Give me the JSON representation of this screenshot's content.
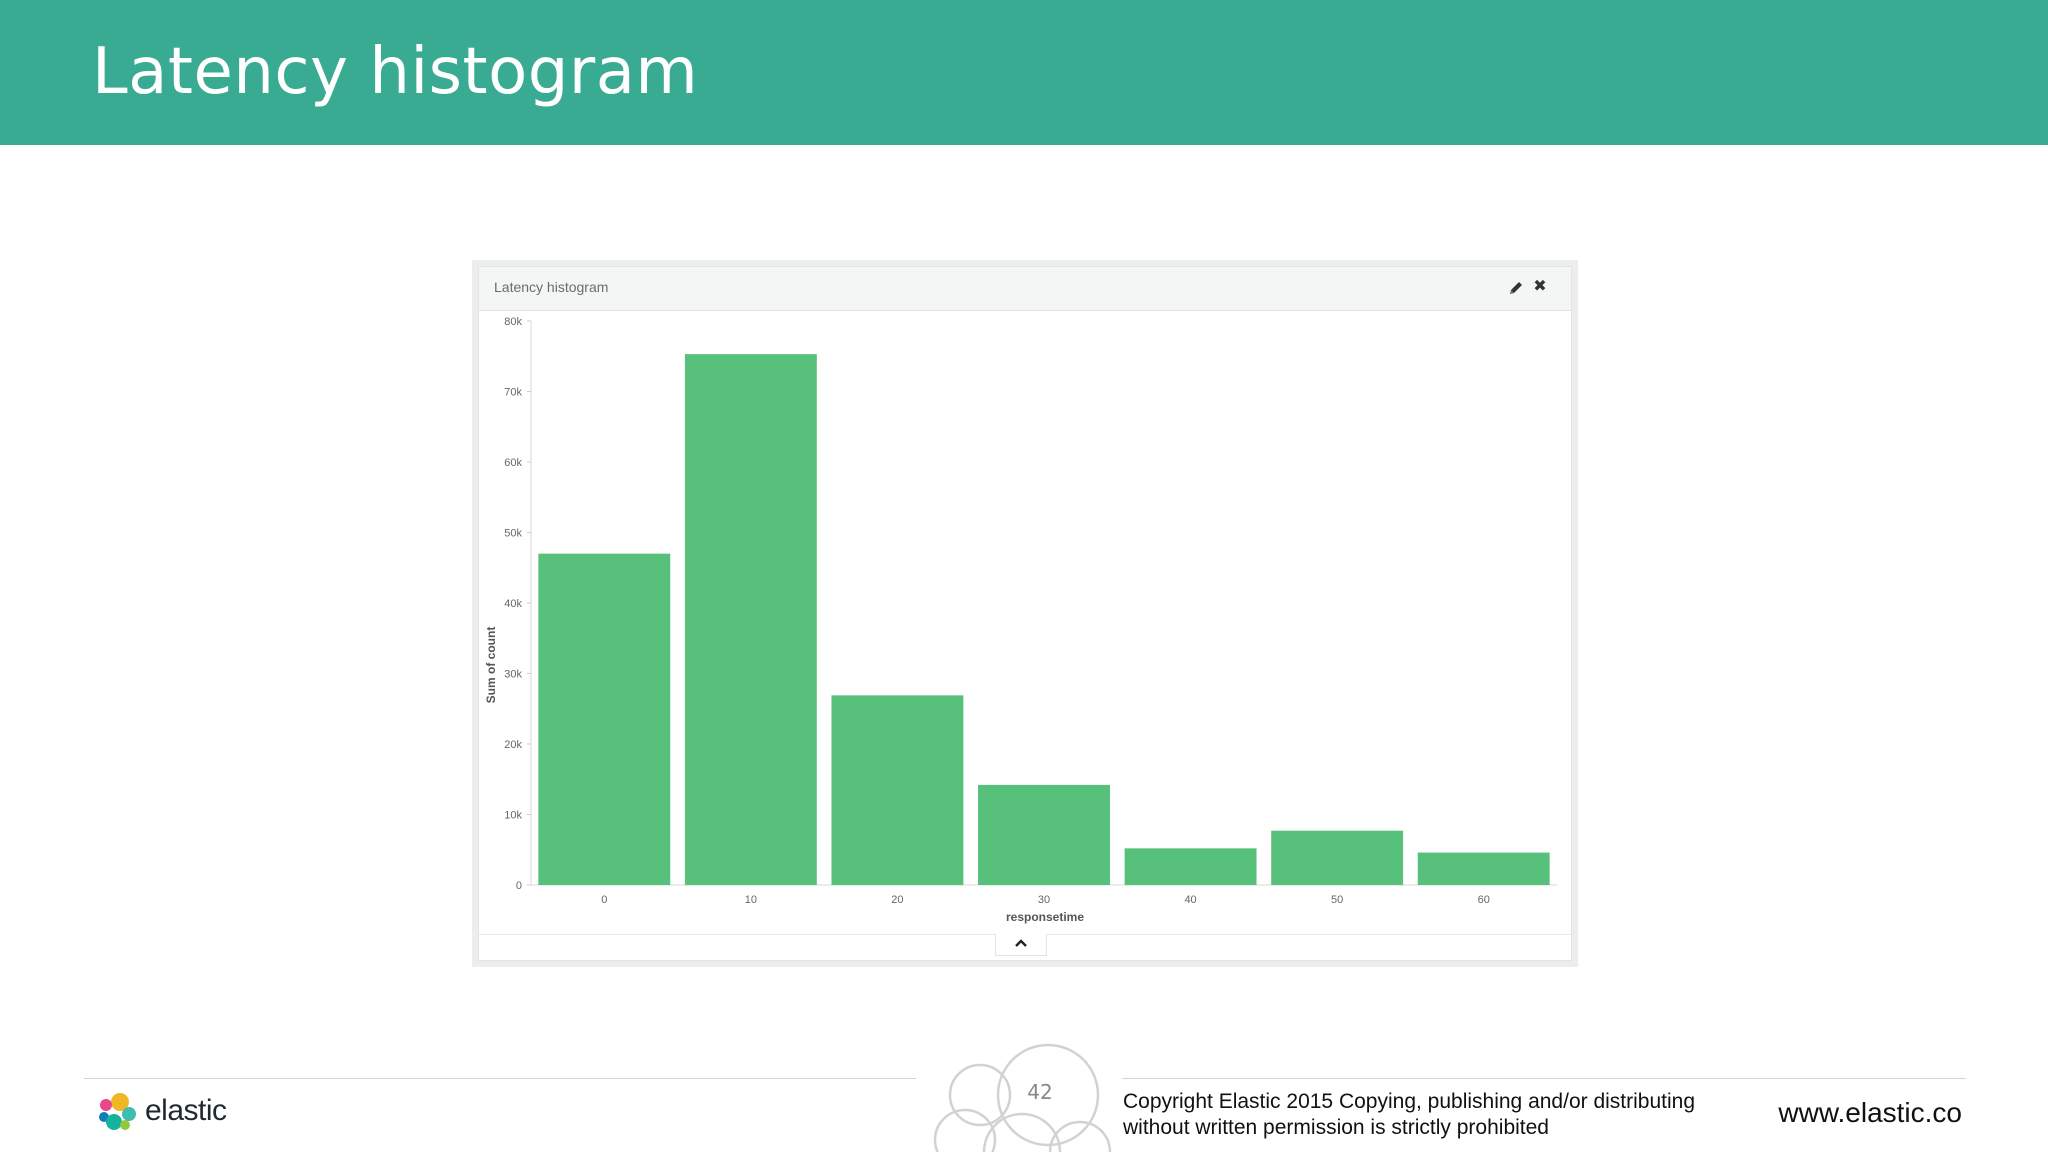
{
  "slide": {
    "title": "Latency histogram",
    "header_color": "#39ab92"
  },
  "panel": {
    "title": "Latency histogram",
    "edit_icon": "pencil-icon",
    "close_icon": "close-icon",
    "collapse_icon": "chevron-up-icon"
  },
  "chart_data": {
    "type": "bar",
    "title": "",
    "xlabel": "responsetime",
    "ylabel": "Sum of count",
    "categories": [
      "0",
      "10",
      "20",
      "30",
      "40",
      "50",
      "60"
    ],
    "values": [
      47000,
      75300,
      26900,
      14200,
      5200,
      7700,
      4600
    ],
    "y_ticks": [
      "0",
      "10k",
      "20k",
      "30k",
      "40k",
      "50k",
      "60k",
      "70k",
      "80k"
    ],
    "ylim": [
      0,
      80000
    ],
    "grid": false,
    "legend": "none",
    "bar_color": "#57c17b"
  },
  "footer": {
    "brand": "elastic",
    "page_number": "42",
    "copyright_line1": "Copyright Elastic 2015 Copying, publishing and/or distributing",
    "copyright_line2": "without written permission is strictly prohibited",
    "url": "www.elastic.co",
    "logo_icon": "elastic-logo-icon"
  }
}
